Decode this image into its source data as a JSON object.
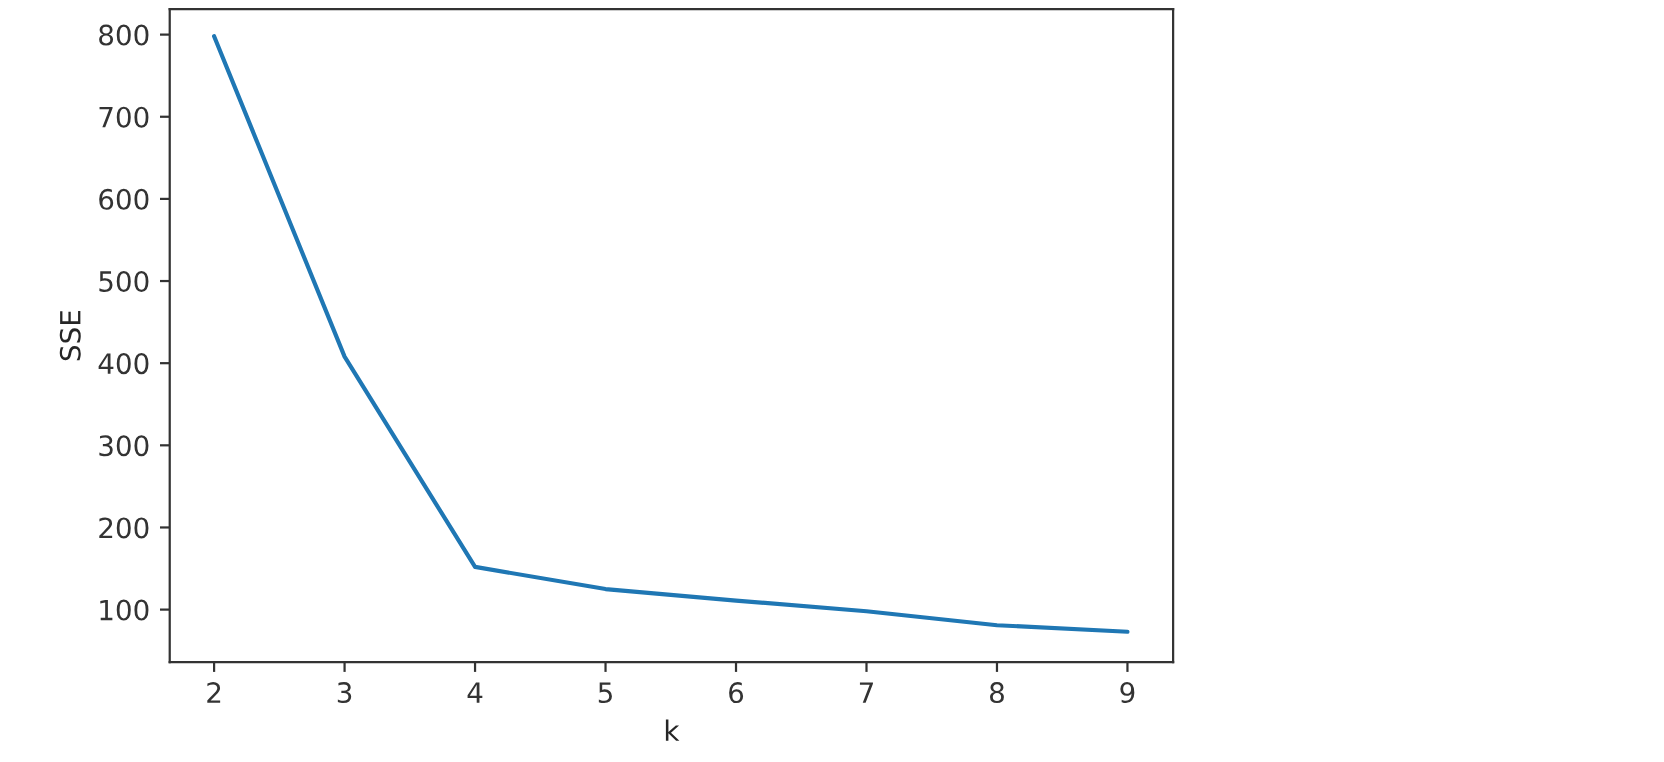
{
  "chart_data": {
    "type": "line",
    "xlabel": "k",
    "ylabel": "SSE",
    "x": [
      2,
      3,
      4,
      5,
      6,
      7,
      8,
      9
    ],
    "series": [
      {
        "color": "#1f77b4",
        "values": [
          798,
          408,
          152,
          125,
          111,
          98,
          81,
          73
        ]
      }
    ],
    "xlim": [
      1.66,
      9.35
    ],
    "xticks": [
      2,
      3,
      4,
      5,
      6,
      7,
      8,
      9
    ],
    "ylim": [
      36,
      831
    ],
    "yticks": [
      100,
      200,
      300,
      400,
      500,
      600,
      700,
      800
    ],
    "grid": false,
    "marker": "none",
    "line_style": "solid"
  }
}
